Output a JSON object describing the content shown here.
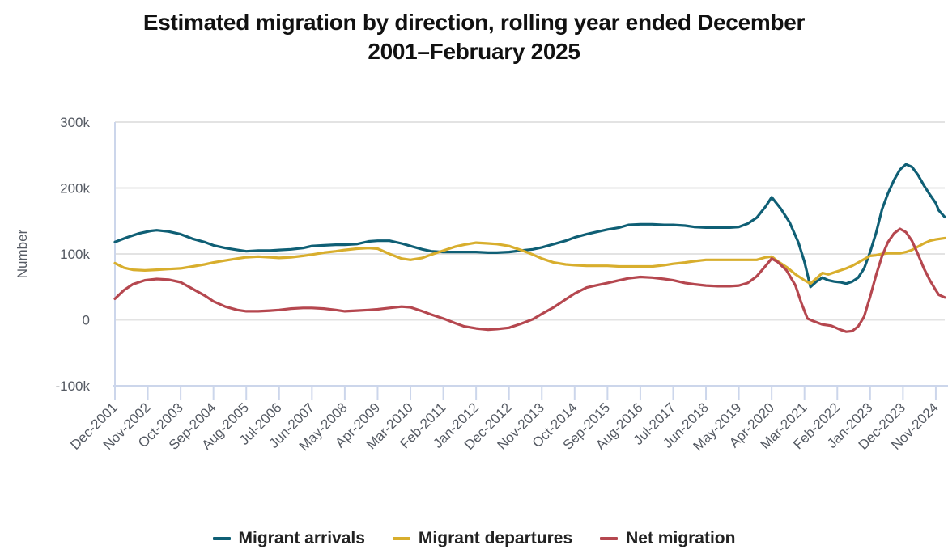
{
  "chart_data": {
    "type": "line",
    "title_lines": [
      "Estimated migration by direction, rolling year ended December",
      "2001–February 2025"
    ],
    "xlabel": "",
    "ylabel": "Number",
    "ylim": [
      -100000,
      300000
    ],
    "yticks": [
      {
        "value": 300000,
        "label": "300k"
      },
      {
        "value": 200000,
        "label": "200k"
      },
      {
        "value": 100000,
        "label": "100k"
      },
      {
        "value": 0,
        "label": "0"
      },
      {
        "value": -100000,
        "label": "-100k"
      }
    ],
    "x_unit": "months since Dec-2001",
    "xlim": [
      0,
      278
    ],
    "xticks": [
      {
        "month": 0,
        "label": "Dec-2001"
      },
      {
        "month": 11,
        "label": "Nov-2002"
      },
      {
        "month": 22,
        "label": "Oct-2003"
      },
      {
        "month": 33,
        "label": "Sep-2004"
      },
      {
        "month": 44,
        "label": "Aug-2005"
      },
      {
        "month": 55,
        "label": "Jul-2006"
      },
      {
        "month": 66,
        "label": "Jun-2007"
      },
      {
        "month": 77,
        "label": "May-2008"
      },
      {
        "month": 88,
        "label": "Apr-2009"
      },
      {
        "month": 99,
        "label": "Mar-2010"
      },
      {
        "month": 110,
        "label": "Feb-2011"
      },
      {
        "month": 121,
        "label": "Jan-2012"
      },
      {
        "month": 132,
        "label": "Dec-2012"
      },
      {
        "month": 143,
        "label": "Nov-2013"
      },
      {
        "month": 154,
        "label": "Oct-2014"
      },
      {
        "month": 165,
        "label": "Sep-2015"
      },
      {
        "month": 176,
        "label": "Aug-2016"
      },
      {
        "month": 187,
        "label": "Jul-2017"
      },
      {
        "month": 198,
        "label": "Jun-2018"
      },
      {
        "month": 209,
        "label": "May-2019"
      },
      {
        "month": 220,
        "label": "Apr-2020"
      },
      {
        "month": 231,
        "label": "Mar-2021"
      },
      {
        "month": 242,
        "label": "Feb-2022"
      },
      {
        "month": 253,
        "label": "Jan-2023"
      },
      {
        "month": 264,
        "label": "Dec-2023"
      },
      {
        "month": 275,
        "label": "Nov-2024"
      }
    ],
    "grid": true,
    "legend_position": "bottom-center",
    "series": [
      {
        "name": "Migrant arrivals",
        "color": "#0f5f75",
        "points": [
          [
            0,
            118000
          ],
          [
            4,
            125000
          ],
          [
            8,
            131000
          ],
          [
            12,
            135000
          ],
          [
            14,
            136000
          ],
          [
            18,
            134000
          ],
          [
            22,
            130000
          ],
          [
            26,
            123000
          ],
          [
            30,
            118000
          ],
          [
            33,
            113000
          ],
          [
            37,
            109000
          ],
          [
            41,
            106000
          ],
          [
            44,
            104000
          ],
          [
            48,
            105000
          ],
          [
            52,
            105000
          ],
          [
            55,
            106000
          ],
          [
            59,
            107000
          ],
          [
            63,
            109000
          ],
          [
            66,
            112000
          ],
          [
            70,
            113000
          ],
          [
            74,
            114000
          ],
          [
            77,
            114000
          ],
          [
            81,
            115000
          ],
          [
            85,
            119000
          ],
          [
            88,
            120000
          ],
          [
            92,
            120000
          ],
          [
            96,
            116000
          ],
          [
            99,
            112000
          ],
          [
            103,
            107000
          ],
          [
            106,
            104000
          ],
          [
            110,
            103000
          ],
          [
            114,
            103000
          ],
          [
            117,
            103000
          ],
          [
            121,
            103000
          ],
          [
            125,
            102000
          ],
          [
            128,
            102000
          ],
          [
            132,
            103000
          ],
          [
            136,
            105000
          ],
          [
            140,
            107000
          ],
          [
            143,
            110000
          ],
          [
            147,
            115000
          ],
          [
            151,
            120000
          ],
          [
            154,
            125000
          ],
          [
            158,
            130000
          ],
          [
            161,
            133000
          ],
          [
            165,
            137000
          ],
          [
            169,
            140000
          ],
          [
            172,
            144000
          ],
          [
            176,
            145000
          ],
          [
            180,
            145000
          ],
          [
            184,
            144000
          ],
          [
            187,
            144000
          ],
          [
            191,
            143000
          ],
          [
            194,
            141000
          ],
          [
            198,
            140000
          ],
          [
            202,
            140000
          ],
          [
            206,
            140000
          ],
          [
            209,
            141000
          ],
          [
            212,
            146000
          ],
          [
            215,
            155000
          ],
          [
            218,
            172000
          ],
          [
            220,
            186000
          ],
          [
            223,
            169000
          ],
          [
            226,
            148000
          ],
          [
            229,
            117000
          ],
          [
            231,
            88000
          ],
          [
            233,
            50000
          ],
          [
            235,
            58000
          ],
          [
            237,
            64000
          ],
          [
            239,
            60000
          ],
          [
            241,
            58000
          ],
          [
            243,
            57000
          ],
          [
            245,
            55000
          ],
          [
            247,
            58000
          ],
          [
            249,
            64000
          ],
          [
            251,
            78000
          ],
          [
            253,
            103000
          ],
          [
            255,
            132000
          ],
          [
            257,
            168000
          ],
          [
            259,
            192000
          ],
          [
            261,
            212000
          ],
          [
            263,
            228000
          ],
          [
            265,
            236000
          ],
          [
            267,
            232000
          ],
          [
            269,
            220000
          ],
          [
            271,
            204000
          ],
          [
            273,
            190000
          ],
          [
            275,
            177000
          ],
          [
            276,
            166000
          ],
          [
            278,
            156000
          ]
        ]
      },
      {
        "name": "Migrant departures",
        "color": "#d8ae2d",
        "points": [
          [
            0,
            86000
          ],
          [
            3,
            79000
          ],
          [
            6,
            76000
          ],
          [
            10,
            75000
          ],
          [
            14,
            76000
          ],
          [
            18,
            77000
          ],
          [
            22,
            78000
          ],
          [
            26,
            81000
          ],
          [
            30,
            84000
          ],
          [
            33,
            87000
          ],
          [
            37,
            90000
          ],
          [
            41,
            93000
          ],
          [
            44,
            95000
          ],
          [
            48,
            96000
          ],
          [
            52,
            95000
          ],
          [
            55,
            94000
          ],
          [
            59,
            95000
          ],
          [
            63,
            97000
          ],
          [
            66,
            99000
          ],
          [
            70,
            102000
          ],
          [
            74,
            104000
          ],
          [
            77,
            106000
          ],
          [
            81,
            108000
          ],
          [
            85,
            109000
          ],
          [
            88,
            108000
          ],
          [
            92,
            100000
          ],
          [
            96,
            93000
          ],
          [
            99,
            91000
          ],
          [
            103,
            94000
          ],
          [
            106,
            99000
          ],
          [
            110,
            105000
          ],
          [
            114,
            111000
          ],
          [
            117,
            114000
          ],
          [
            121,
            117000
          ],
          [
            125,
            116000
          ],
          [
            128,
            115000
          ],
          [
            132,
            112000
          ],
          [
            136,
            106000
          ],
          [
            140,
            99000
          ],
          [
            143,
            93000
          ],
          [
            147,
            87000
          ],
          [
            151,
            84000
          ],
          [
            154,
            83000
          ],
          [
            158,
            82000
          ],
          [
            161,
            82000
          ],
          [
            165,
            82000
          ],
          [
            169,
            81000
          ],
          [
            172,
            81000
          ],
          [
            176,
            81000
          ],
          [
            180,
            81000
          ],
          [
            184,
            83000
          ],
          [
            187,
            85000
          ],
          [
            191,
            87000
          ],
          [
            194,
            89000
          ],
          [
            198,
            91000
          ],
          [
            202,
            91000
          ],
          [
            206,
            91000
          ],
          [
            209,
            91000
          ],
          [
            212,
            91000
          ],
          [
            215,
            91000
          ],
          [
            218,
            95000
          ],
          [
            220,
            96000
          ],
          [
            222,
            89000
          ],
          [
            225,
            80000
          ],
          [
            228,
            69000
          ],
          [
            231,
            60000
          ],
          [
            233,
            55000
          ],
          [
            235,
            63000
          ],
          [
            237,
            71000
          ],
          [
            239,
            69000
          ],
          [
            241,
            72000
          ],
          [
            243,
            75000
          ],
          [
            245,
            78000
          ],
          [
            247,
            82000
          ],
          [
            249,
            87000
          ],
          [
            251,
            92000
          ],
          [
            253,
            97000
          ],
          [
            255,
            98000
          ],
          [
            257,
            100000
          ],
          [
            259,
            101000
          ],
          [
            261,
            101000
          ],
          [
            263,
            101000
          ],
          [
            265,
            103000
          ],
          [
            267,
            106000
          ],
          [
            269,
            111000
          ],
          [
            271,
            116000
          ],
          [
            273,
            120000
          ],
          [
            275,
            122000
          ],
          [
            278,
            124000
          ]
        ]
      },
      {
        "name": "Net migration",
        "color": "#b5474f",
        "points": [
          [
            0,
            32000
          ],
          [
            3,
            45000
          ],
          [
            6,
            54000
          ],
          [
            10,
            60000
          ],
          [
            14,
            62000
          ],
          [
            18,
            61000
          ],
          [
            22,
            57000
          ],
          [
            26,
            47000
          ],
          [
            30,
            37000
          ],
          [
            33,
            28000
          ],
          [
            37,
            20000
          ],
          [
            41,
            15000
          ],
          [
            44,
            13000
          ],
          [
            48,
            13000
          ],
          [
            52,
            14000
          ],
          [
            55,
            15000
          ],
          [
            59,
            17000
          ],
          [
            63,
            18000
          ],
          [
            66,
            18000
          ],
          [
            70,
            17000
          ],
          [
            74,
            15000
          ],
          [
            77,
            13000
          ],
          [
            81,
            14000
          ],
          [
            85,
            15000
          ],
          [
            88,
            16000
          ],
          [
            92,
            18000
          ],
          [
            96,
            20000
          ],
          [
            99,
            19000
          ],
          [
            103,
            13000
          ],
          [
            106,
            8000
          ],
          [
            110,
            2000
          ],
          [
            114,
            -5000
          ],
          [
            117,
            -10000
          ],
          [
            121,
            -13000
          ],
          [
            125,
            -15000
          ],
          [
            128,
            -14000
          ],
          [
            132,
            -12000
          ],
          [
            136,
            -6000
          ],
          [
            140,
            1000
          ],
          [
            143,
            9000
          ],
          [
            147,
            19000
          ],
          [
            151,
            31000
          ],
          [
            154,
            40000
          ],
          [
            158,
            49000
          ],
          [
            161,
            52000
          ],
          [
            165,
            56000
          ],
          [
            169,
            60000
          ],
          [
            172,
            63000
          ],
          [
            176,
            65000
          ],
          [
            180,
            64000
          ],
          [
            184,
            62000
          ],
          [
            187,
            60000
          ],
          [
            191,
            56000
          ],
          [
            194,
            54000
          ],
          [
            198,
            52000
          ],
          [
            202,
            51000
          ],
          [
            206,
            51000
          ],
          [
            209,
            52000
          ],
          [
            212,
            56000
          ],
          [
            215,
            66000
          ],
          [
            218,
            82000
          ],
          [
            220,
            93000
          ],
          [
            222,
            88000
          ],
          [
            225,
            75000
          ],
          [
            228,
            52000
          ],
          [
            230,
            25000
          ],
          [
            232,
            2000
          ],
          [
            234,
            -2000
          ],
          [
            237,
            -7000
          ],
          [
            240,
            -9000
          ],
          [
            243,
            -15000
          ],
          [
            245,
            -18000
          ],
          [
            247,
            -17000
          ],
          [
            249,
            -10000
          ],
          [
            251,
            5000
          ],
          [
            253,
            35000
          ],
          [
            255,
            68000
          ],
          [
            257,
            97000
          ],
          [
            259,
            118000
          ],
          [
            261,
            131000
          ],
          [
            263,
            138000
          ],
          [
            265,
            133000
          ],
          [
            267,
            120000
          ],
          [
            269,
            100000
          ],
          [
            271,
            78000
          ],
          [
            273,
            60000
          ],
          [
            275,
            45000
          ],
          [
            276,
            38000
          ],
          [
            278,
            34000
          ]
        ]
      }
    ]
  }
}
